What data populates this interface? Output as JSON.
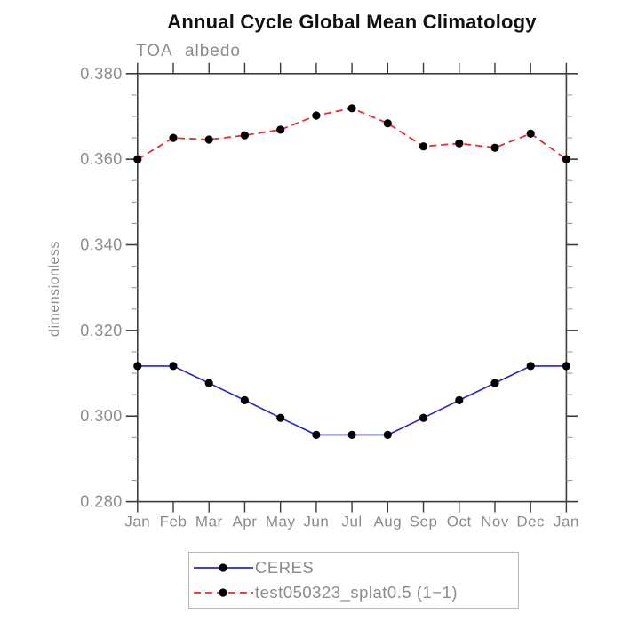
{
  "header": {
    "title": "Annual Cycle Global Mean Climatology"
  },
  "chart_data": {
    "type": "line",
    "title": "Annual Cycle Global Mean Climatology",
    "subtitle": "TOA albedo",
    "ylabel": "dimensionless",
    "xlabel": "",
    "categories": [
      "Jan",
      "Feb",
      "Mar",
      "Apr",
      "May",
      "Jun",
      "Jul",
      "Aug",
      "Sep",
      "Oct",
      "Nov",
      "Dec",
      "Jan"
    ],
    "ylim": [
      0.28,
      0.38
    ],
    "ytick_major": 0.02,
    "ytick_minor": 0.005,
    "ytick_labels": [
      "0.280",
      "0.300",
      "0.320",
      "0.340",
      "0.360",
      "0.380"
    ],
    "grid": false,
    "legend_position": "bottom",
    "series": [
      {
        "name": "CERES",
        "color": "#2424cf",
        "line_style": "solid",
        "marker": "black-circle",
        "values": [
          0.3117,
          0.3117,
          0.3077,
          0.3037,
          0.2996,
          0.2956,
          0.2956,
          0.2956,
          0.2996,
          0.3037,
          0.3077,
          0.3117,
          0.3117
        ]
      },
      {
        "name": "test050323_splat0.5 (1−1)",
        "color": "#ee2a2a",
        "line_style": "dashed",
        "marker": "black-circle",
        "values": [
          0.36,
          0.365,
          0.3646,
          0.3656,
          0.3669,
          0.3702,
          0.3719,
          0.3684,
          0.363,
          0.3637,
          0.3627,
          0.366,
          0.36
        ]
      }
    ],
    "colors": {
      "axis": "#3a3a3a",
      "minor_tick": "#9c9c9c",
      "marker": "#000000",
      "text": "#8c8c8c",
      "title": "#111111",
      "legend_border": "#b8b8b8"
    }
  }
}
